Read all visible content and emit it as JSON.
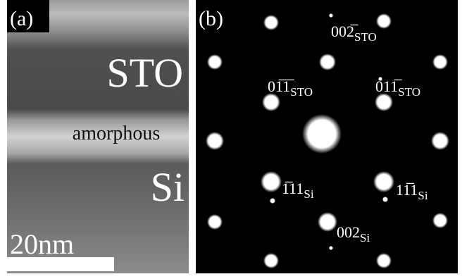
{
  "panel_a": {
    "label": "(a)",
    "layers": [
      "STO",
      "amorphous",
      "Si"
    ],
    "scale_bar": "20nm"
  },
  "panel_b": {
    "label": "(b)",
    "spots": [
      {
        "index": "002̅",
        "phase": "STO"
      },
      {
        "index": "01̅1̅",
        "phase": "STO"
      },
      {
        "index": "011̅",
        "phase": "STO"
      },
      {
        "index": "1̅11",
        "phase": "Si"
      },
      {
        "index": "11̅1",
        "phase": "Si"
      },
      {
        "index": "002",
        "phase": "Si"
      }
    ]
  }
}
